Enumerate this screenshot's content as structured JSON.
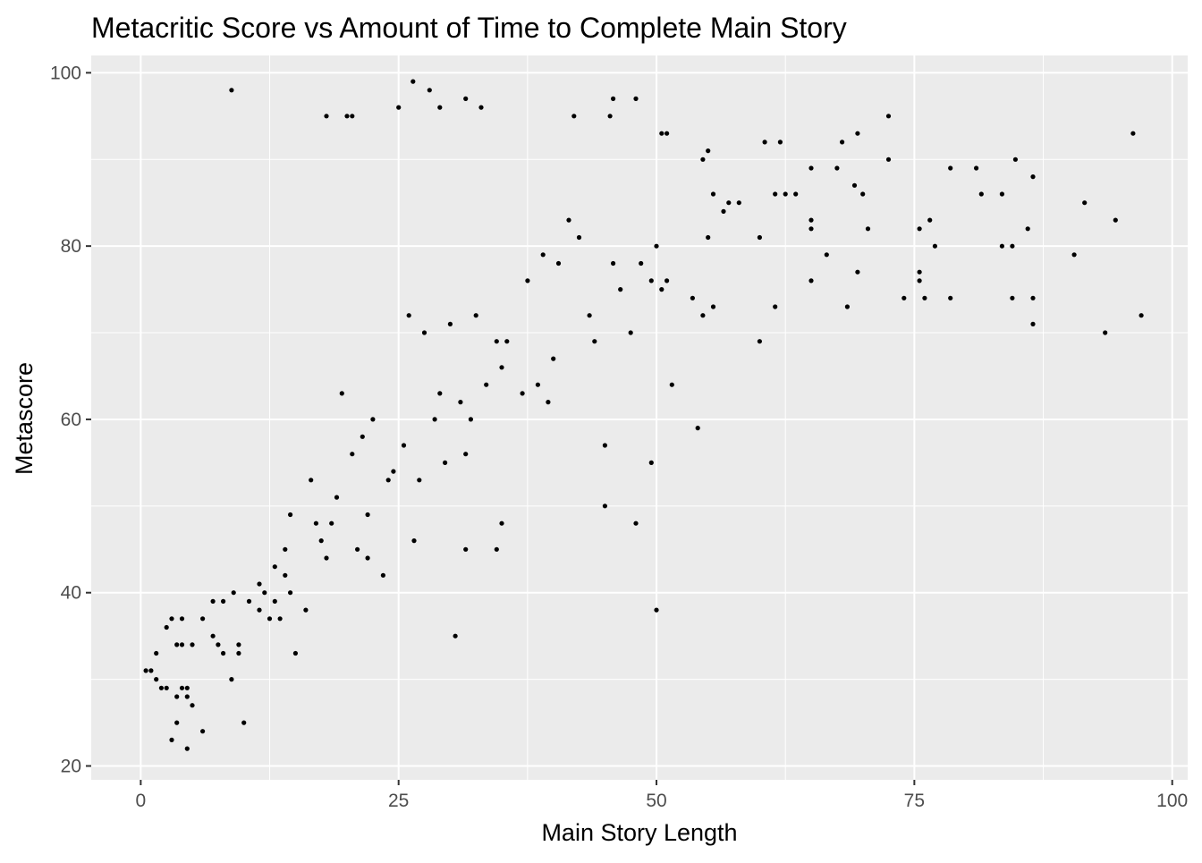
{
  "chart_data": {
    "type": "scatter",
    "title": "Metacritic Score vs Amount of Time to Complete Main Story",
    "xlabel": "Main Story Length",
    "ylabel": "Metascore",
    "xlim": [
      -4.8,
      101.5
    ],
    "ylim": [
      18.4,
      102.0
    ],
    "x_ticks": [
      0,
      25,
      50,
      75,
      100
    ],
    "x_tick_labels": [
      "0",
      "25",
      "50",
      "75",
      "100"
    ],
    "y_ticks": [
      20,
      40,
      60,
      80,
      100
    ],
    "y_tick_labels": [
      "20",
      "40",
      "60",
      "80",
      "100"
    ],
    "grid": true,
    "legend": "none",
    "colors": {
      "panel_background": "#ebebeb",
      "grid_major": "#ffffff",
      "point": "#000000",
      "tick_text": "#4d4d4d",
      "tick_mark": "#333333"
    },
    "series": [
      {
        "points": [
          [
            26.4,
            99
          ],
          [
            28.0,
            98
          ],
          [
            8.8,
            98
          ],
          [
            72.5,
            95
          ],
          [
            96.2,
            93
          ],
          [
            69.5,
            93
          ],
          [
            50.5,
            93
          ],
          [
            51.0,
            93
          ],
          [
            48.0,
            97
          ],
          [
            45.8,
            97
          ],
          [
            31.5,
            97
          ],
          [
            33.0,
            96
          ],
          [
            29.0,
            96
          ],
          [
            25.0,
            96
          ],
          [
            20.0,
            95
          ],
          [
            20.5,
            95
          ],
          [
            18.0,
            95
          ],
          [
            42.0,
            95
          ],
          [
            45.5,
            95
          ],
          [
            72.5,
            90
          ],
          [
            84.8,
            90
          ],
          [
            55.0,
            91
          ],
          [
            54.5,
            90
          ],
          [
            60.5,
            92
          ],
          [
            62.0,
            92
          ],
          [
            68.0,
            92
          ],
          [
            65.0,
            89
          ],
          [
            67.5,
            89
          ],
          [
            78.5,
            89
          ],
          [
            81.0,
            89
          ],
          [
            81.5,
            86
          ],
          [
            83.5,
            86
          ],
          [
            86.5,
            88
          ],
          [
            70.0,
            86
          ],
          [
            69.2,
            87
          ],
          [
            76.5,
            83
          ],
          [
            75.5,
            82
          ],
          [
            70.5,
            82
          ],
          [
            86.0,
            82
          ],
          [
            91.5,
            85
          ],
          [
            94.5,
            83
          ],
          [
            90.5,
            79
          ],
          [
            97.0,
            72
          ],
          [
            93.5,
            70
          ],
          [
            86.5,
            74
          ],
          [
            86.5,
            71
          ],
          [
            84.5,
            74
          ],
          [
            83.5,
            80
          ],
          [
            84.5,
            80
          ],
          [
            78.5,
            74
          ],
          [
            77.0,
            80
          ],
          [
            75.5,
            77
          ],
          [
            75.5,
            76
          ],
          [
            76.0,
            74
          ],
          [
            74.0,
            74
          ],
          [
            69.5,
            77
          ],
          [
            68.5,
            73
          ],
          [
            66.5,
            79
          ],
          [
            65.0,
            76
          ],
          [
            65.0,
            83
          ],
          [
            65.0,
            82
          ],
          [
            63.5,
            86
          ],
          [
            62.5,
            86
          ],
          [
            61.5,
            86
          ],
          [
            61.5,
            73
          ],
          [
            60.0,
            81
          ],
          [
            60.0,
            69
          ],
          [
            58.0,
            85
          ],
          [
            57.0,
            85
          ],
          [
            56.5,
            84
          ],
          [
            55.5,
            86
          ],
          [
            55.5,
            73
          ],
          [
            55.0,
            81
          ],
          [
            54.5,
            72
          ],
          [
            54.0,
            59
          ],
          [
            53.5,
            74
          ],
          [
            51.5,
            64
          ],
          [
            51.0,
            76
          ],
          [
            50.5,
            75
          ],
          [
            50.0,
            80
          ],
          [
            49.5,
            76
          ],
          [
            49.5,
            55
          ],
          [
            50.0,
            38
          ],
          [
            48.5,
            78
          ],
          [
            48.0,
            48
          ],
          [
            47.5,
            70
          ],
          [
            46.5,
            75
          ],
          [
            45.8,
            78
          ],
          [
            45.0,
            50
          ],
          [
            45.0,
            57
          ],
          [
            44.0,
            69
          ],
          [
            43.5,
            72
          ],
          [
            42.5,
            81
          ],
          [
            41.5,
            83
          ],
          [
            40.5,
            78
          ],
          [
            40.0,
            67
          ],
          [
            39.5,
            62
          ],
          [
            39.0,
            79
          ],
          [
            38.5,
            64
          ],
          [
            37.5,
            76
          ],
          [
            37.0,
            63
          ],
          [
            35.5,
            69
          ],
          [
            35.0,
            66
          ],
          [
            34.5,
            69
          ],
          [
            35.0,
            48
          ],
          [
            34.5,
            45
          ],
          [
            33.5,
            64
          ],
          [
            32.5,
            72
          ],
          [
            32.0,
            60
          ],
          [
            31.5,
            56
          ],
          [
            31.5,
            45
          ],
          [
            31.0,
            62
          ],
          [
            30.5,
            35
          ],
          [
            30.0,
            71
          ],
          [
            29.5,
            55
          ],
          [
            29.0,
            63
          ],
          [
            28.5,
            60
          ],
          [
            27.5,
            70
          ],
          [
            27.0,
            53
          ],
          [
            26.5,
            46
          ],
          [
            26.0,
            72
          ],
          [
            25.5,
            57
          ],
          [
            24.5,
            54
          ],
          [
            24.0,
            53
          ],
          [
            23.5,
            42
          ],
          [
            22.5,
            60
          ],
          [
            22.0,
            44
          ],
          [
            22.0,
            49
          ],
          [
            21.5,
            58
          ],
          [
            21.0,
            45
          ],
          [
            20.5,
            56
          ],
          [
            19.5,
            63
          ],
          [
            19.0,
            51
          ],
          [
            18.5,
            48
          ],
          [
            18.0,
            44
          ],
          [
            17.5,
            46
          ],
          [
            17.0,
            48
          ],
          [
            16.5,
            53
          ],
          [
            16.0,
            38
          ],
          [
            15.0,
            33
          ],
          [
            14.5,
            40
          ],
          [
            14.5,
            49
          ],
          [
            14.0,
            45
          ],
          [
            13.5,
            37
          ],
          [
            13.0,
            43
          ],
          [
            12.5,
            37
          ],
          [
            11.5,
            41
          ],
          [
            10.0,
            25
          ],
          [
            9.5,
            33
          ],
          [
            9.5,
            34
          ],
          [
            8.8,
            30
          ],
          [
            8.0,
            33
          ],
          [
            7.5,
            34
          ],
          [
            7.0,
            35
          ],
          [
            6.0,
            24
          ],
          [
            5.0,
            27
          ],
          [
            4.5,
            22
          ],
          [
            4.5,
            28
          ],
          [
            4.5,
            29
          ],
          [
            4.0,
            29
          ],
          [
            3.5,
            25
          ],
          [
            3.5,
            28
          ],
          [
            3.0,
            23
          ],
          [
            2.5,
            29
          ],
          [
            2.0,
            29
          ],
          [
            1.5,
            30
          ],
          [
            1.0,
            31
          ],
          [
            0.5,
            31
          ],
          [
            1.5,
            33
          ],
          [
            2.5,
            36
          ],
          [
            3.0,
            37
          ],
          [
            4.0,
            37
          ],
          [
            4.0,
            34
          ],
          [
            3.5,
            34
          ],
          [
            5.0,
            34
          ],
          [
            6.0,
            37
          ],
          [
            7.0,
            39
          ],
          [
            8.0,
            39
          ],
          [
            9.0,
            40
          ],
          [
            10.5,
            39
          ],
          [
            11.5,
            38
          ],
          [
            12.0,
            40
          ],
          [
            13.0,
            39
          ],
          [
            14.0,
            42
          ]
        ]
      }
    ]
  }
}
